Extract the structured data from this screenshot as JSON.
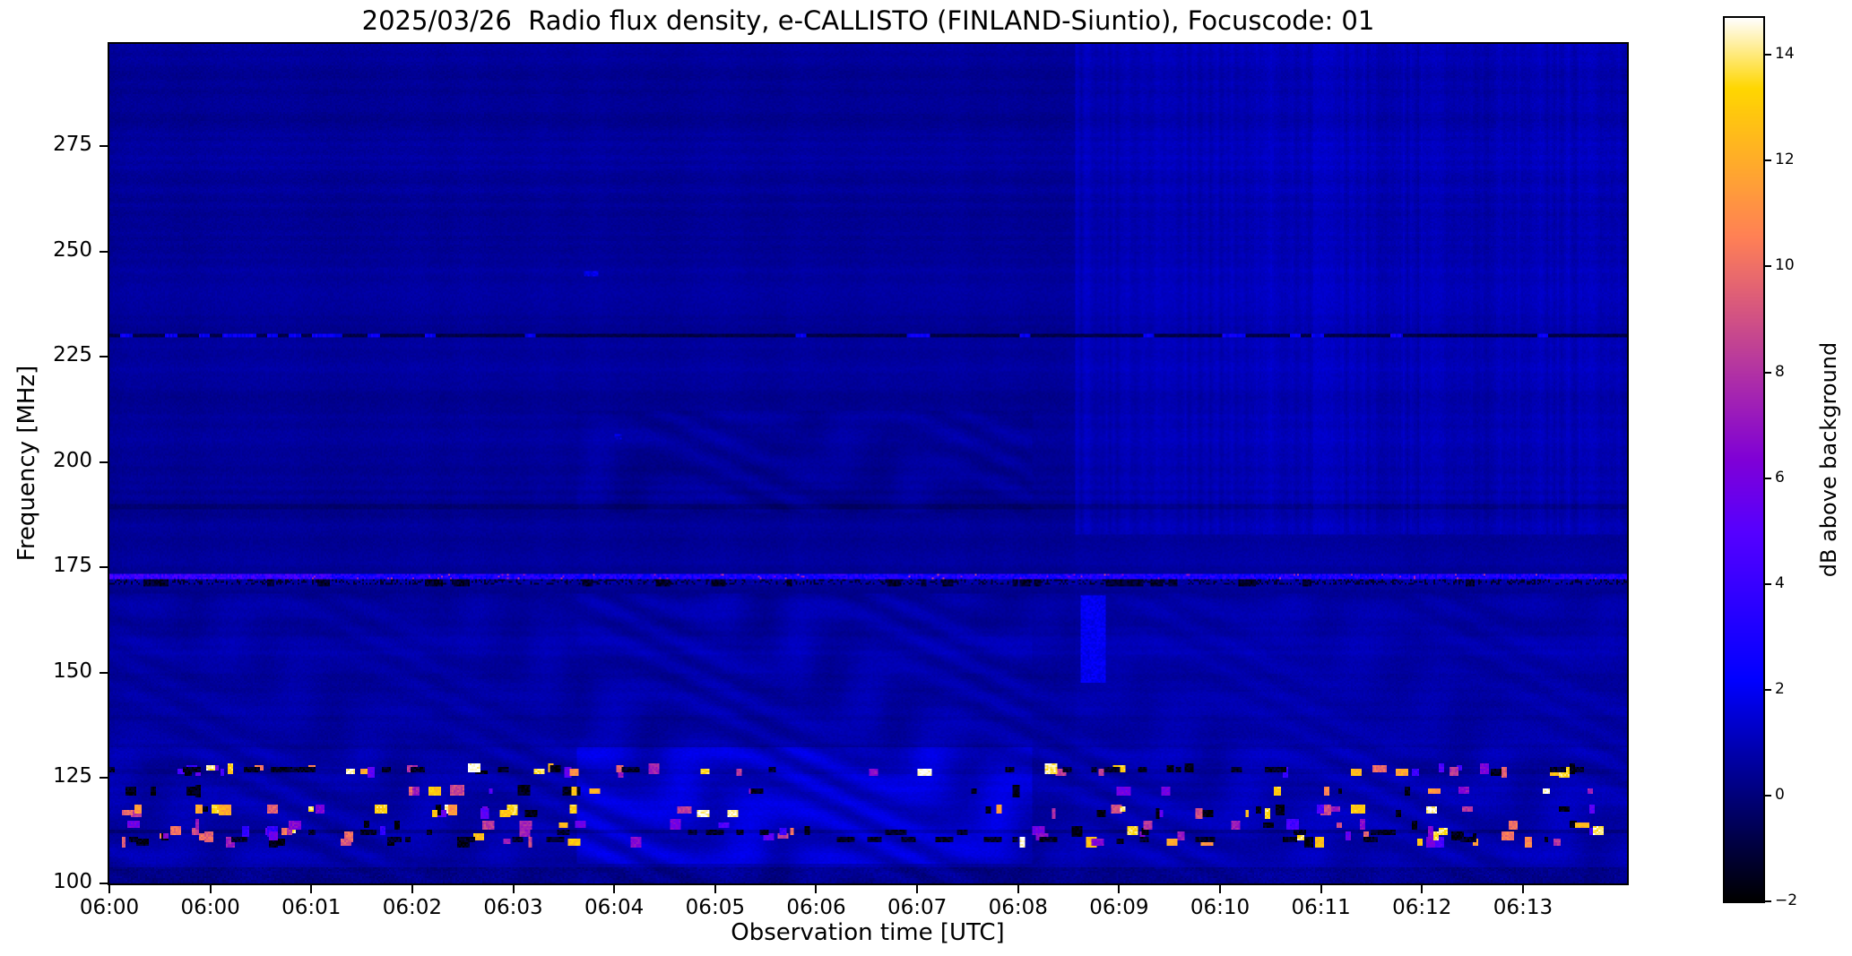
{
  "chart_data": {
    "type": "heatmap",
    "title": "2025/03/26  Radio flux density, e-CALLISTO (FINLAND-Siuntio), Focuscode: 01",
    "xlabel": "Observation time [UTC]",
    "ylabel": "Frequency [MHz]",
    "x_tick_labels": [
      "06:00",
      "06:00",
      "06:01",
      "06:02",
      "06:03",
      "06:04",
      "06:05",
      "06:06",
      "06:07",
      "06:08",
      "06:09",
      "06:10",
      "06:11",
      "06:12",
      "06:13"
    ],
    "y_tick_values": [
      100,
      125,
      150,
      175,
      200,
      225,
      250,
      275
    ],
    "freq_range_mhz": [
      100,
      299.3
    ],
    "time_span_minutes": 15,
    "grid": false,
    "colorbar": {
      "label": "dB above background",
      "tick_values": [
        -2,
        0,
        2,
        4,
        6,
        8,
        10,
        12,
        14
      ],
      "vmin": -2,
      "vmax": 14.7,
      "colormap": "gnuplot2"
    },
    "background_level_db": 0.5,
    "features": [
      {
        "kind": "rfi-line-bright",
        "freq_mhz": 172.8,
        "level_db": 3,
        "note": "persistent bright blue line across full duration, brightest/widest 06:00-06:02, dotted dark row just below"
      },
      {
        "kind": "rfi-line-dark",
        "freq_mhz": 230,
        "level_db": -1.1,
        "note": "dark horizontal line across full duration with bright blue segments before 06:02"
      },
      {
        "kind": "rfi-line-dark",
        "freq_mhz": 189.4,
        "level_db": 0,
        "note": "faint dark line"
      },
      {
        "kind": "rfi-line-dark",
        "freq_mhz": 112.3,
        "level_db": 0,
        "note": "dark line with sporadic bright bursts"
      },
      {
        "kind": "rfi-line-dark",
        "freq_mhz": 126.7,
        "level_db": 0.2,
        "note": "dark line with sporadic bright bursts"
      },
      {
        "kind": "wavy-interference",
        "freq_range_mhz": [
          100,
          168
        ],
        "level_db": 1.5,
        "note": "wavy fringe pattern over lower band, strongest between the 06:04 and 06:09 ticks, bright blue band 105-132 MHz"
      },
      {
        "kind": "wavy-interference-faint",
        "freq_range_mhz": [
          188,
          212
        ],
        "level_db": 0.7,
        "note": "faint ripples between 06:04 and 06:09 ticks"
      },
      {
        "kind": "sporadic-bursts",
        "freq_rows_mhz": [
          110,
          112,
          117,
          118,
          122,
          126,
          127
        ],
        "level_db_max": 14,
        "note": "short bright pink/yellow/white dashes and black dropouts, mostly 06:00-06:04 and 06:09-06:14"
      },
      {
        "kind": "bright-patch",
        "time_tick": "between 06:09 and 06:10",
        "freq_range_mhz": [
          148,
          168
        ],
        "level_db": 2.2,
        "note": "vertical bright blue patch"
      },
      {
        "kind": "block-boundary",
        "note": "background level/texture changes near 06:04 tick and near 06:09-06:10; brighter vertical-streaked block above 183 MHz on right side"
      }
    ]
  }
}
